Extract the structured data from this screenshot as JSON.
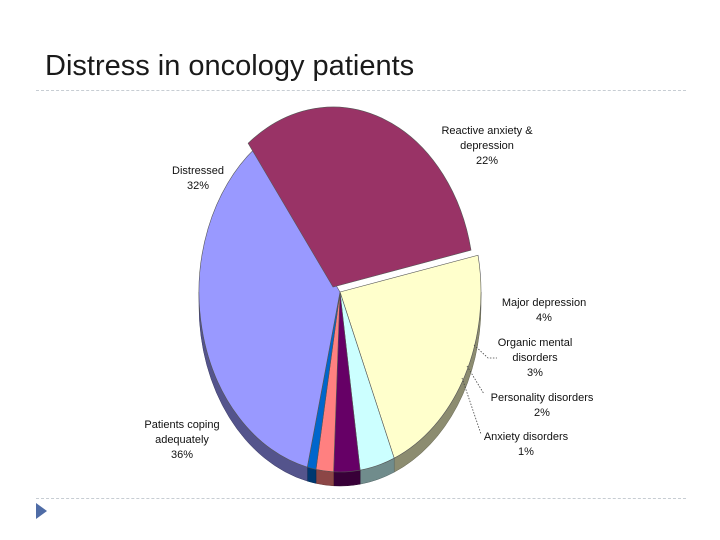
{
  "slide": {
    "title": "Distress in oncology patients"
  },
  "chart_data": {
    "type": "pie",
    "style": "3d",
    "title": "",
    "slices": [
      {
        "label_lines": [
          "Reactive anxiety &",
          "depression",
          "22%"
        ],
        "value": 22,
        "color": "#ffffcc"
      },
      {
        "label_lines": [
          "Major depression",
          "4%"
        ],
        "value": 4,
        "color": "#ccffff"
      },
      {
        "label_lines": [
          "Organic mental",
          "disorders",
          "3%"
        ],
        "value": 3,
        "color": "#660066"
      },
      {
        "label_lines": [
          "Personality disorders",
          "2%"
        ],
        "value": 2,
        "color": "#ff8080"
      },
      {
        "label_lines": [
          "Anxiety disorders",
          "1%"
        ],
        "value": 1,
        "color": "#0066cc"
      },
      {
        "label_lines": [
          "Patients coping",
          "adequately",
          "36%"
        ],
        "value": 36,
        "color": "#9999ff"
      },
      {
        "label_lines": [
          "Distressed",
          "32%"
        ],
        "value": 32,
        "color": "#993366"
      }
    ]
  }
}
